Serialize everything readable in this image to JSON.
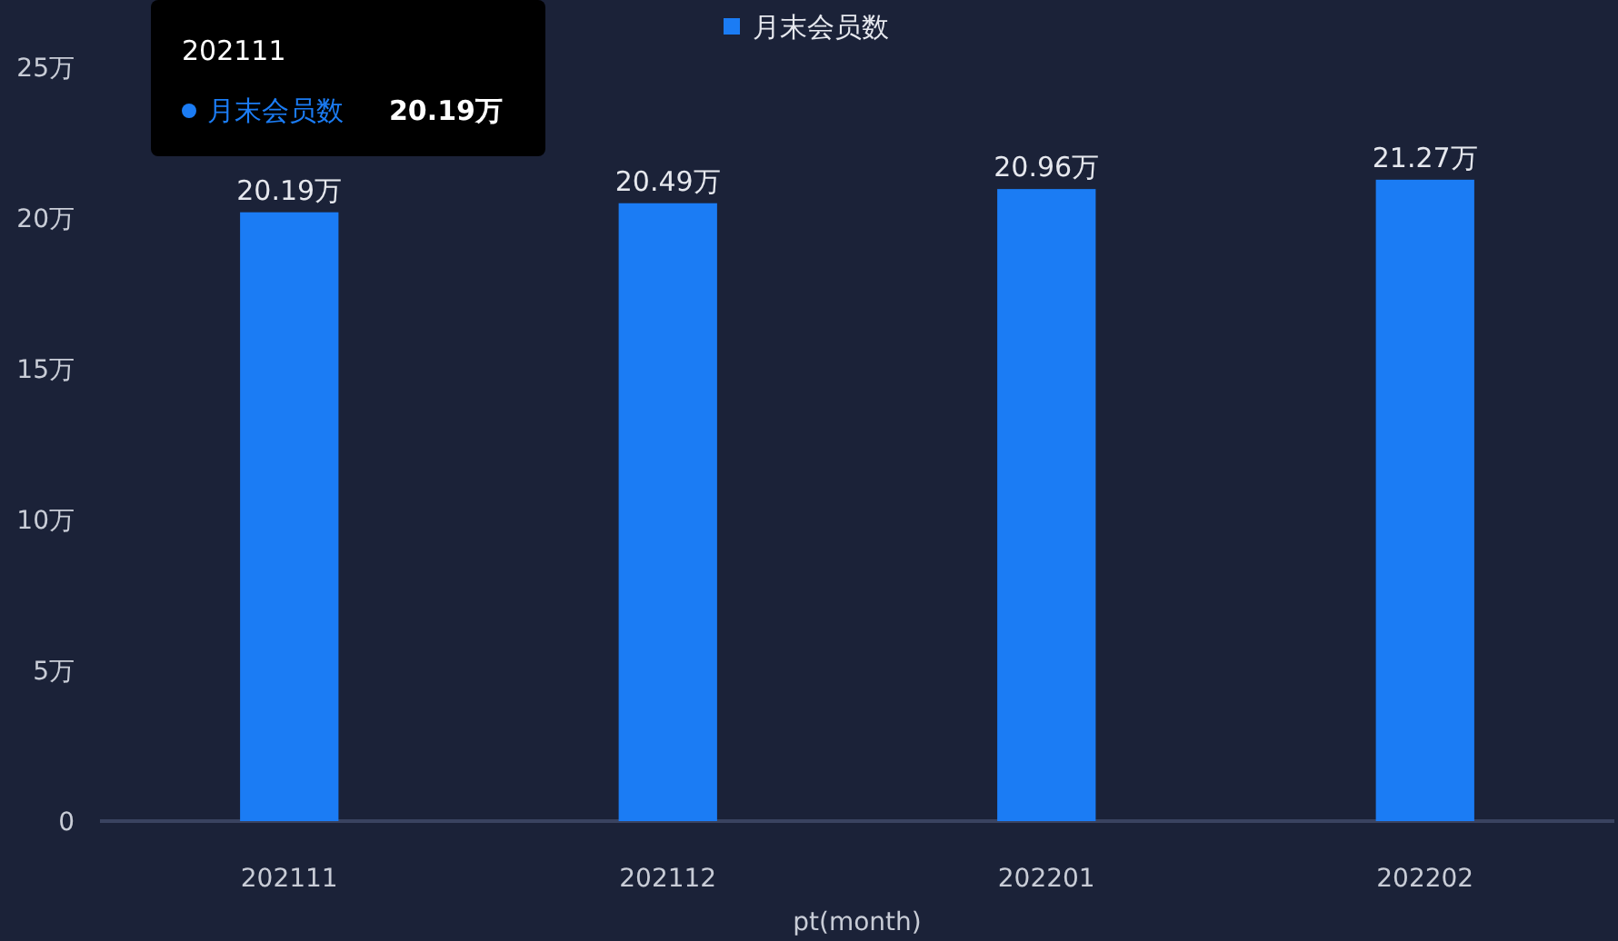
{
  "chart_data": {
    "type": "bar",
    "xlabel": "pt(month)",
    "categories": [
      "202111",
      "202112",
      "202201",
      "202202"
    ],
    "series": [
      {
        "name": "月末会员数",
        "color": "#1b7cf4",
        "values": [
          20.19,
          20.49,
          20.96,
          21.27
        ],
        "value_labels": [
          "20.19万",
          "20.49万",
          "20.96万",
          "21.27万"
        ]
      }
    ],
    "ylim": [
      0,
      25
    ],
    "yticks": [
      {
        "value": 0,
        "label": "0"
      },
      {
        "value": 5,
        "label": "5万"
      },
      {
        "value": 10,
        "label": "10万"
      },
      {
        "value": 15,
        "label": "15万"
      },
      {
        "value": 20,
        "label": "20万"
      },
      {
        "value": 25,
        "label": "25万"
      }
    ],
    "grid": false,
    "legend": "top",
    "annotations": [
      "202111",
      "月末会员数",
      "20.19万"
    ]
  }
}
